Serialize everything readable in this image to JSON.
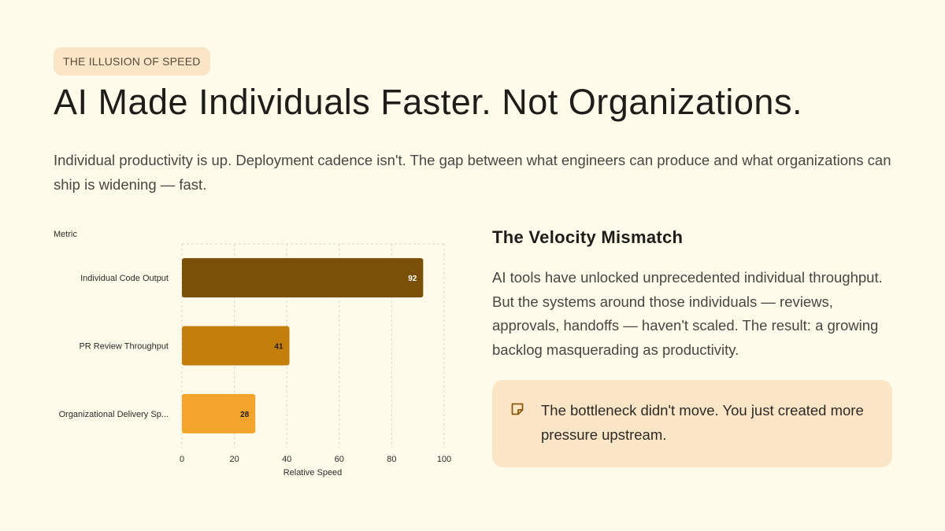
{
  "badge": "THE ILLUSION OF SPEED",
  "title": "AI Made Individuals Faster. Not Organizations.",
  "subtitle": "Individual productivity is up. Deployment cadence isn't. The gap between what engineers can produce and what organizations can ship is widening — fast.",
  "chart_data": {
    "type": "bar",
    "orientation": "horizontal",
    "categories": [
      "Individual Code Output",
      "PR Review Throughput",
      "Organizational Delivery Sp..."
    ],
    "values": [
      92,
      41,
      28
    ],
    "data_labels": [
      "92",
      "41",
      "28"
    ],
    "colors": [
      "#7a4f07",
      "#c47e0c",
      "#f2a52a"
    ],
    "label_colors": [
      "#ffffff",
      "#1f1d1a",
      "#1f1d1a"
    ],
    "xlabel": "Relative Speed",
    "ylabel": "Metric",
    "xlim": [
      0,
      100
    ],
    "xticks": [
      "0",
      "20",
      "40",
      "60",
      "80",
      "100"
    ],
    "grid": true
  },
  "right_panel": {
    "heading": "The Velocity Mismatch",
    "body": "AI tools have unlocked unprecedented individual throughput. But the systems around those individuals — reviews, approvals, handoffs — haven't scaled. The result: a growing backlog masquerading as productivity.",
    "callout": {
      "icon": "note-icon",
      "text": "The bottleneck didn't move. You just created more pressure upstream."
    }
  }
}
